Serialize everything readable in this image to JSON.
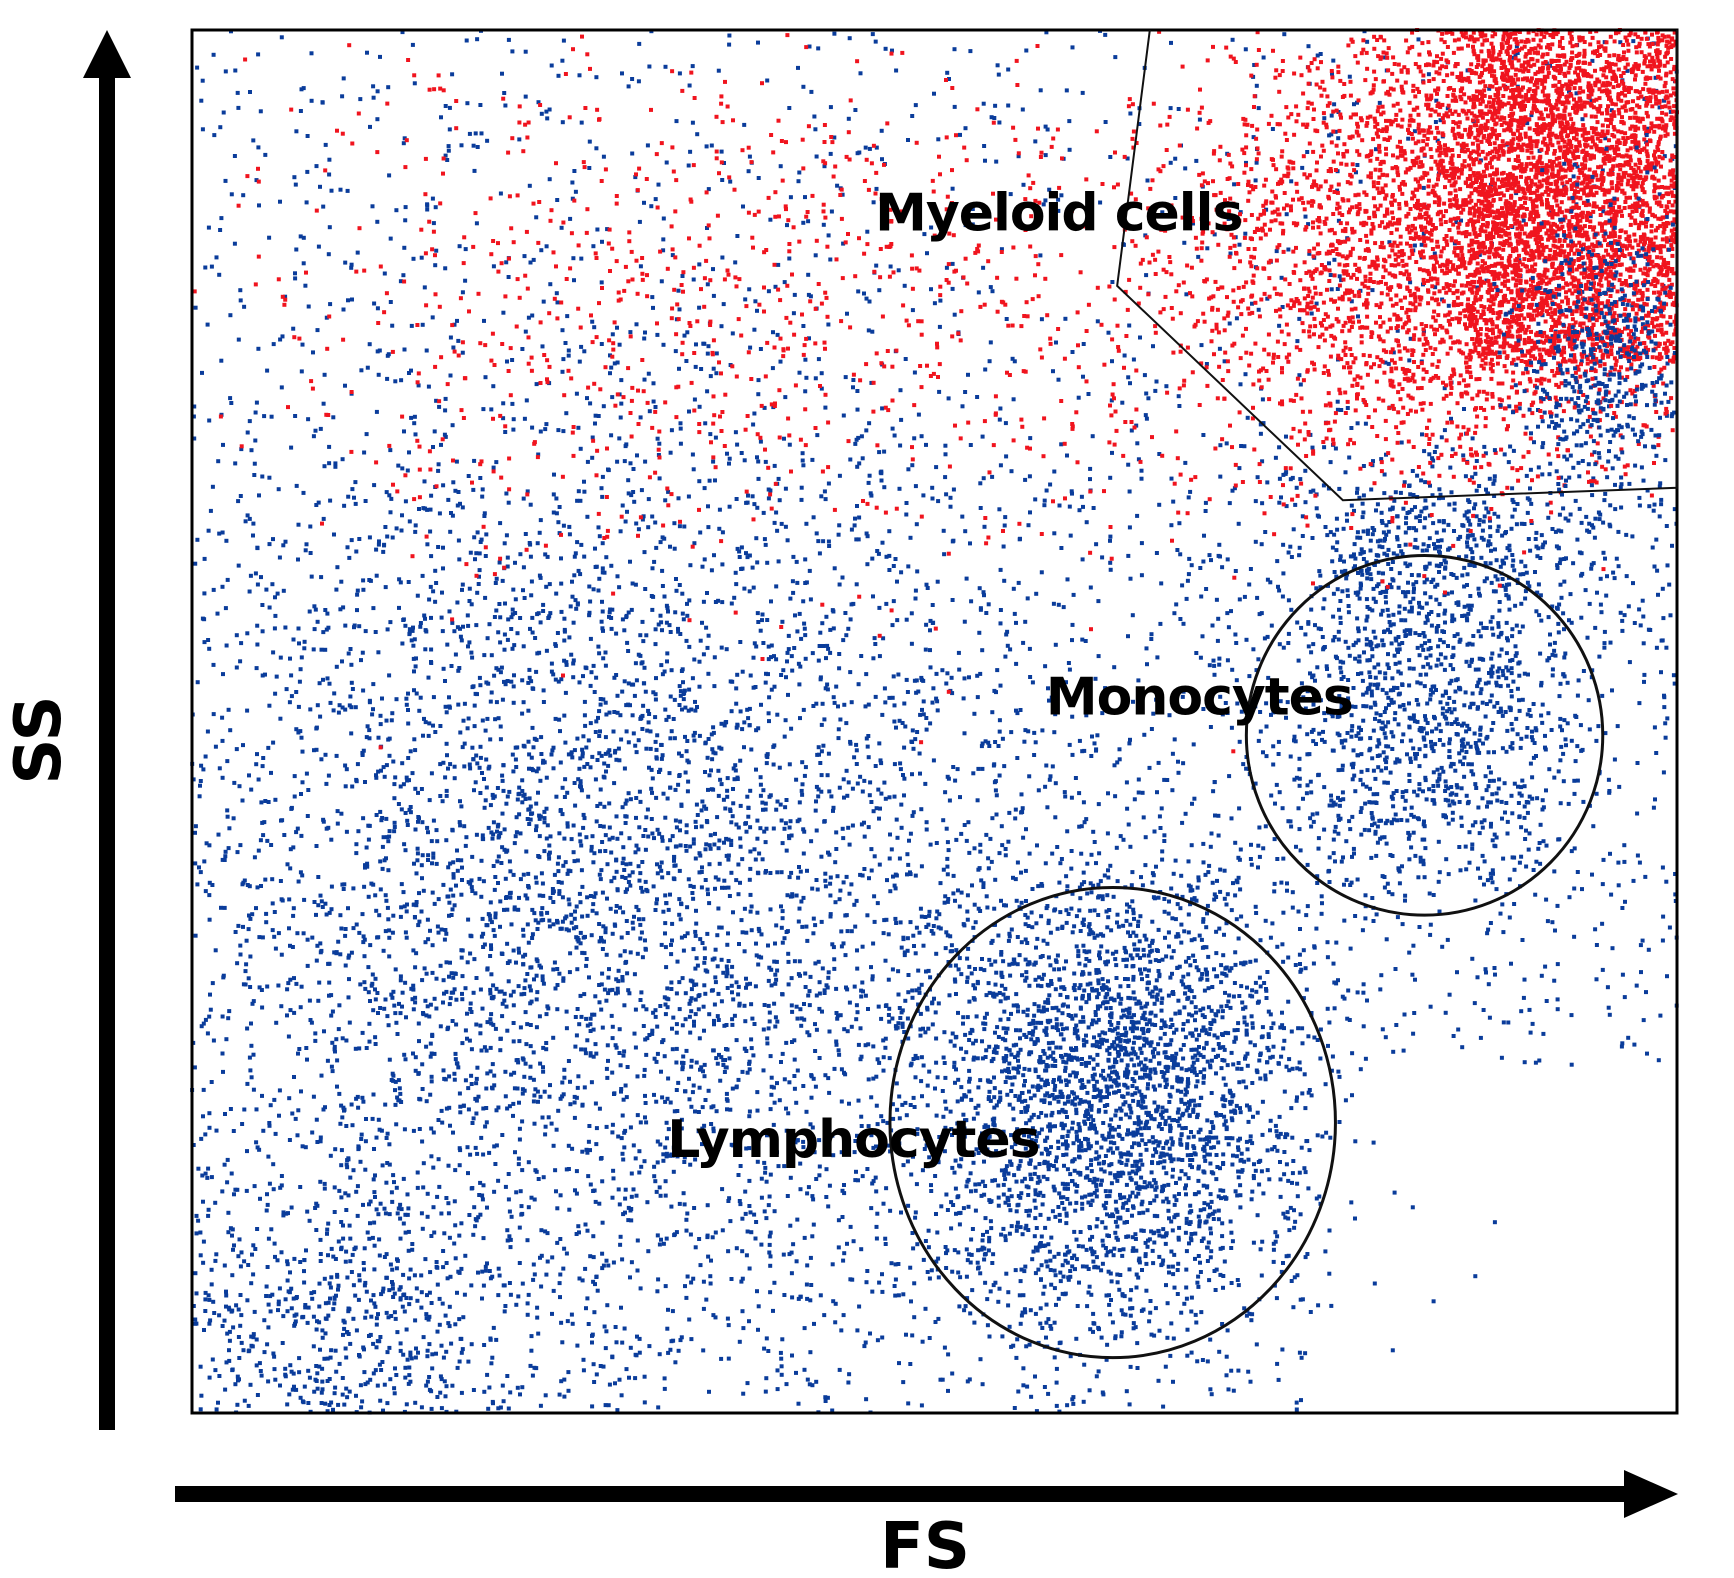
{
  "chart_data": {
    "type": "scatter",
    "title": "",
    "xlabel": "FS",
    "ylabel": "SS",
    "xlim": [
      0,
      100
    ],
    "ylim": [
      0,
      100
    ],
    "grid": false,
    "legend": "none",
    "colors": {
      "granulocyte_events": "#f0141e",
      "other_events": "#0a3c9b",
      "gate_outline": "#111111"
    },
    "clusters": [
      {
        "name": "Lymphocytes",
        "kind": "ellipse_gate",
        "center": [
          62,
          21
        ],
        "radius": [
          15,
          17
        ],
        "color": "other_events"
      },
      {
        "name": "Monocytes",
        "kind": "ellipse_gate",
        "center": [
          83,
          49
        ],
        "radius": [
          12,
          13
        ],
        "color": "other_events"
      },
      {
        "name": "Myeloid cells",
        "kind": "polygon_gate",
        "vertices": [
          [
            64.5,
            100
          ],
          [
            62.3,
            81.5
          ],
          [
            77.5,
            66
          ],
          [
            100,
            66.9
          ],
          [
            100,
            100
          ]
        ],
        "color": "granulocyte_events"
      }
    ],
    "annotations": [
      {
        "text": "Myeloid cells",
        "x": 46,
        "y": 85.5
      },
      {
        "text": "Monocytes",
        "x": 57.5,
        "y": 50.5
      },
      {
        "text": "Lymphocytes",
        "x": 32,
        "y": 18.5
      }
    ]
  }
}
